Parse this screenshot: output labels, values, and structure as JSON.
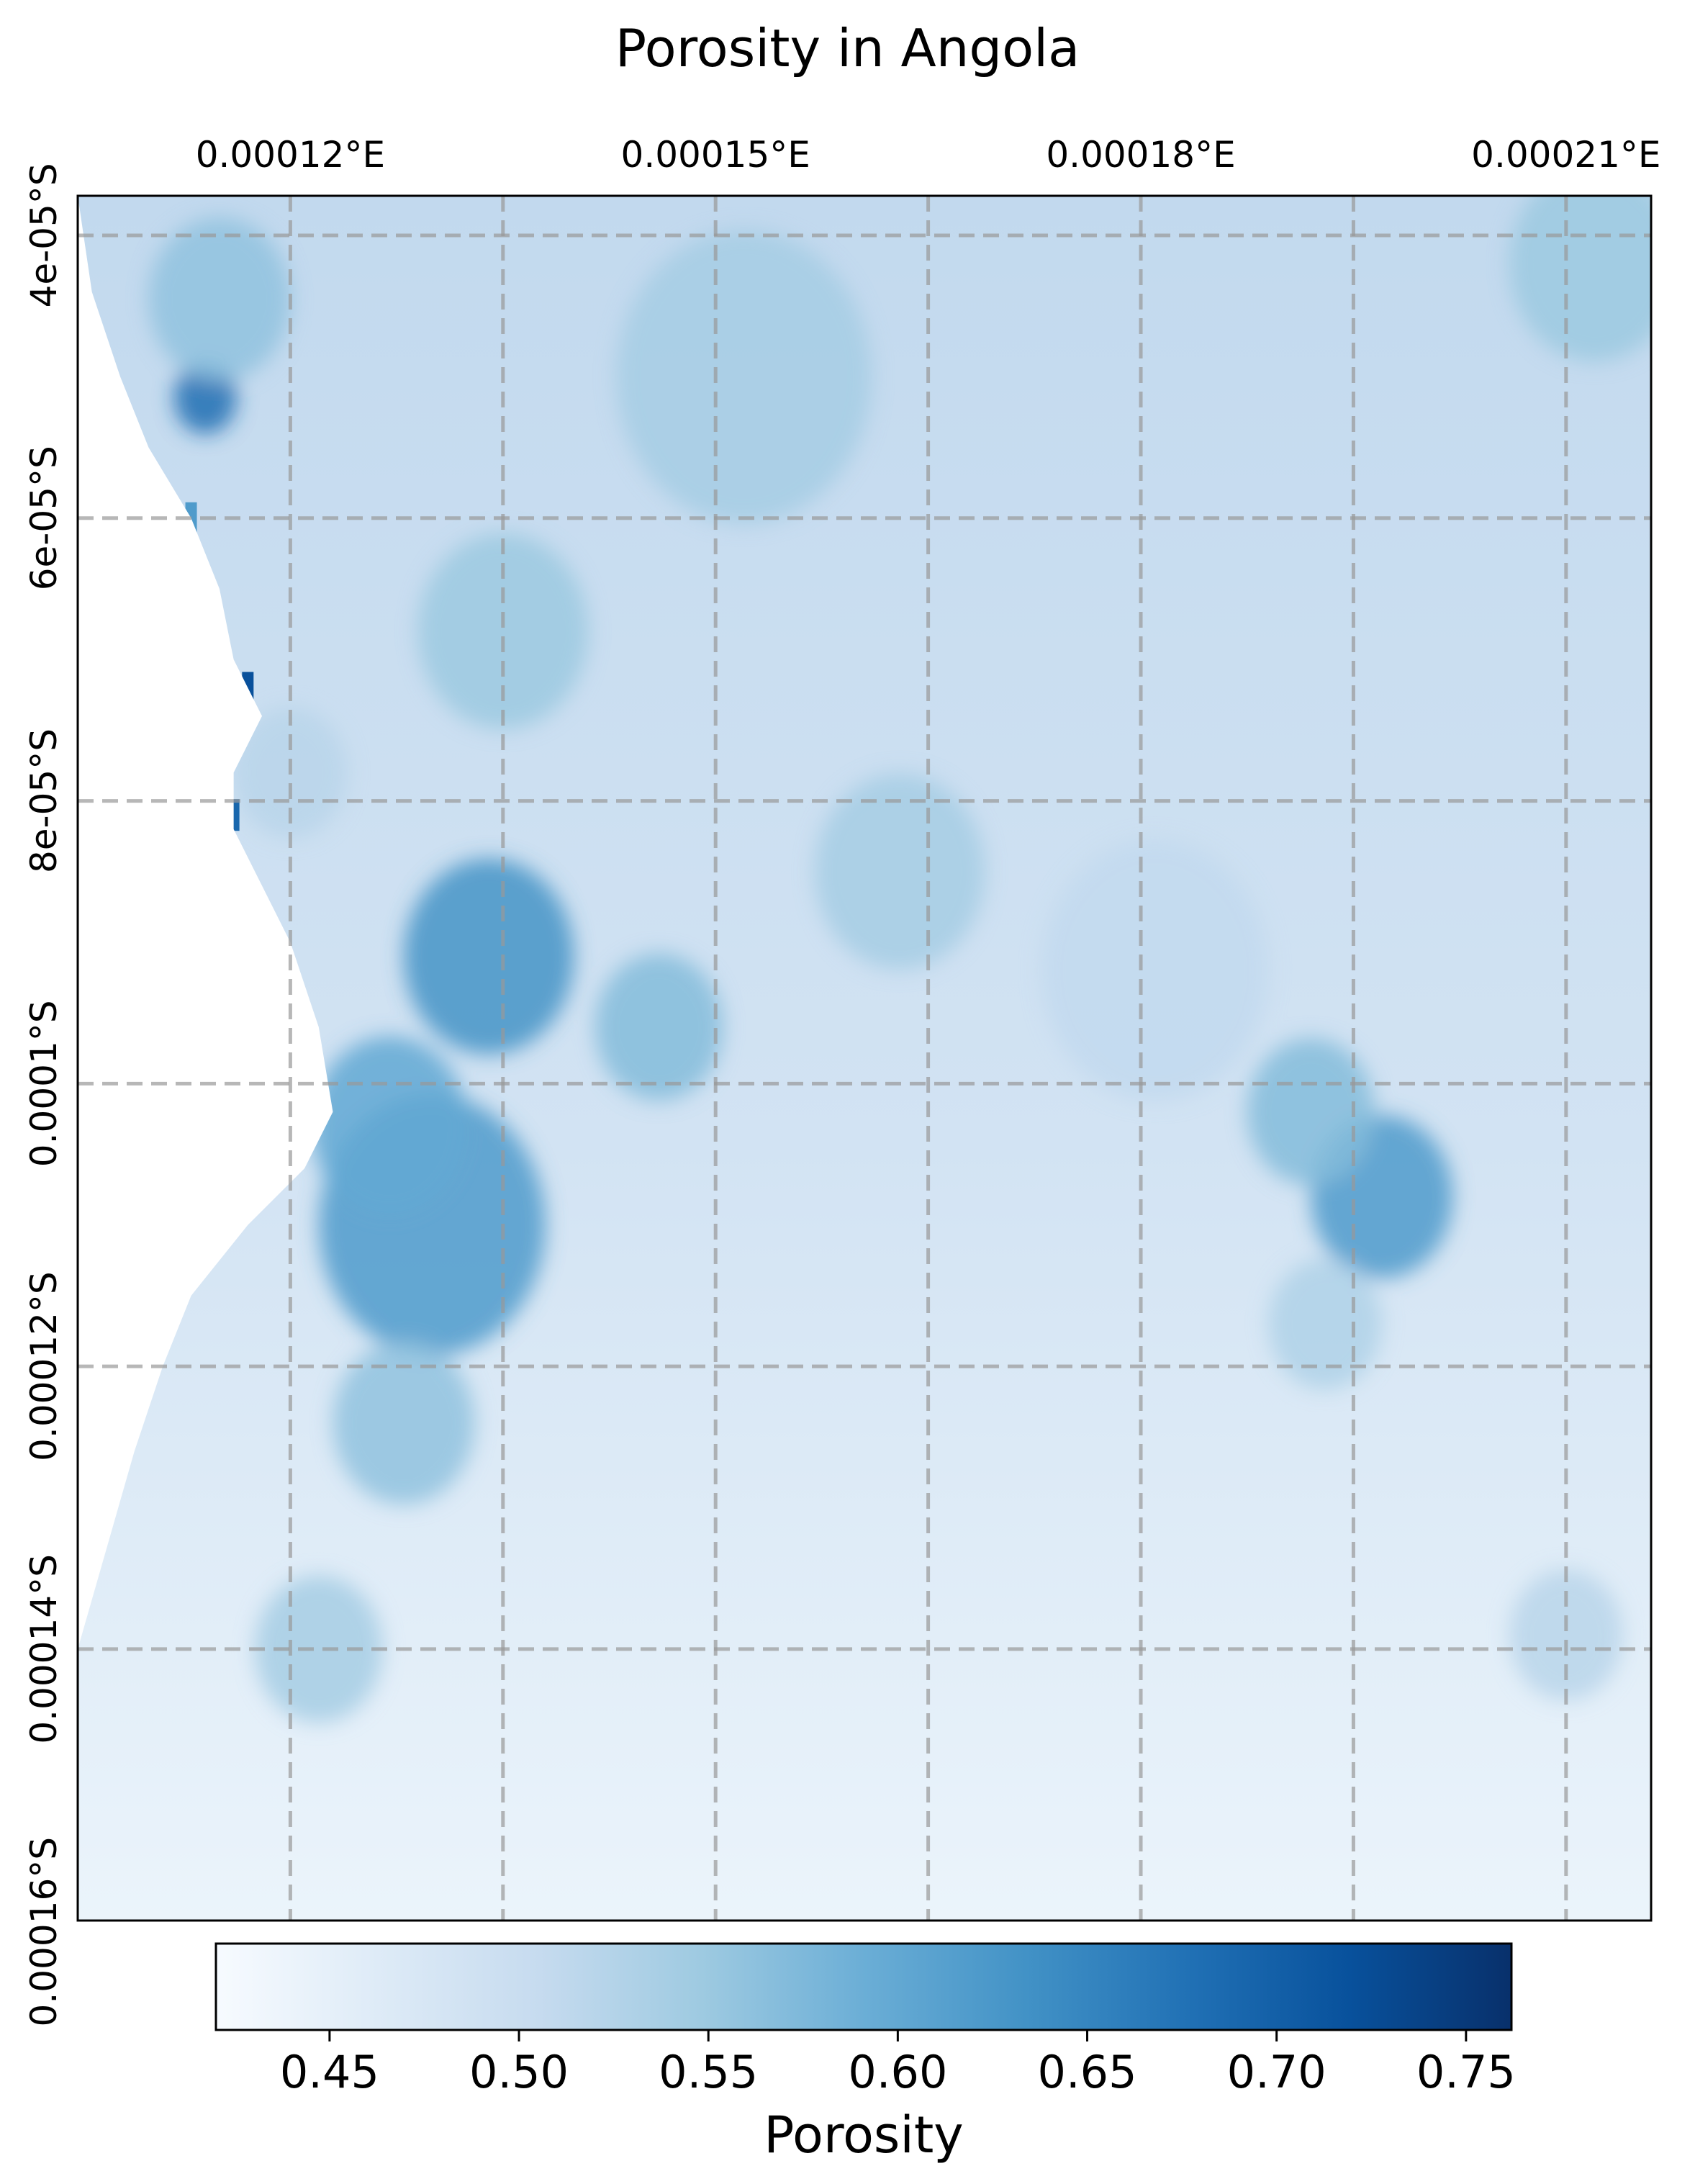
{
  "title": "Porosity in Angola",
  "colors": {
    "colormap": [
      "#f7fbff",
      "#deebf7",
      "#c6dbef",
      "#9ecae1",
      "#6baed6",
      "#4292c6",
      "#2171b5",
      "#08519c",
      "#08306b"
    ],
    "grid": "#999999",
    "frame": "#000000",
    "missing": "#ffffff"
  },
  "map": {
    "lon_range": [
      0.000105,
      0.000216
    ],
    "lat_range": [
      3.72e-05,
      0.0001592
    ],
    "lon_ticks": [
      {
        "value": 0.00012,
        "label": "0.00012°E"
      },
      {
        "value": 0.00015,
        "label": "0.00015°E"
      },
      {
        "value": 0.00018,
        "label": "0.00018°E"
      },
      {
        "value": 0.00021,
        "label": "0.00021°E"
      }
    ],
    "lat_ticks": [
      {
        "value": 4e-05,
        "label": "4e-05°S"
      },
      {
        "value": 6e-05,
        "label": "6e-05°S"
      },
      {
        "value": 8e-05,
        "label": "8e-05°S"
      },
      {
        "value": 0.0001,
        "label": "0.0001°S"
      },
      {
        "value": 0.00012,
        "label": "0.00012°S"
      },
      {
        "value": 0.00014,
        "label": "0.00014°S"
      },
      {
        "value": 0.00016,
        "label": "0.00016°S"
      }
    ],
    "gridlines": "dashed",
    "coastline_west_lon_by_lat": [
      [
        3.72e-05,
        0.000105
      ],
      [
        4.4e-05,
        0.000106
      ],
      [
        5e-05,
        0.000108
      ],
      [
        5.5e-05,
        0.00011
      ],
      [
        6e-05,
        0.000113
      ],
      [
        6.5e-05,
        0.000115
      ],
      [
        7e-05,
        0.000116
      ],
      [
        7.4e-05,
        0.000118
      ],
      [
        7.8e-05,
        0.000116
      ],
      [
        8.2e-05,
        0.000116
      ],
      [
        8.6e-05,
        0.000118
      ],
      [
        9e-05,
        0.00012
      ],
      [
        9.6e-05,
        0.000122
      ],
      [
        0.000102,
        0.000123
      ],
      [
        0.000106,
        0.000121
      ],
      [
        0.00011,
        0.000117
      ],
      [
        0.000115,
        0.000113
      ],
      [
        0.00012,
        0.000111
      ],
      [
        0.000126,
        0.000109
      ],
      [
        0.000133,
        0.000107
      ],
      [
        0.00014,
        0.000105
      ],
      [
        0.0001592,
        0.000105
      ]
    ],
    "porosity_features": [
      {
        "lon": 0.000134,
        "lat": 9.1e-05,
        "spread": 6e-06,
        "value": 0.63
      },
      {
        "lon": 0.00013,
        "lat": 0.00011,
        "spread": 8e-06,
        "value": 0.62
      },
      {
        "lon": 0.000127,
        "lat": 0.000103,
        "spread": 5.5e-06,
        "value": 0.6
      },
      {
        "lon": 0.000146,
        "lat": 9.6e-05,
        "spread": 4.5e-06,
        "value": 0.57
      },
      {
        "lon": 0.000128,
        "lat": 0.000124,
        "spread": 5e-06,
        "value": 0.56
      },
      {
        "lon": 0.000122,
        "lat": 0.00014,
        "spread": 4.5e-06,
        "value": 0.54
      },
      {
        "lon": 0.000197,
        "lat": 0.000108,
        "spread": 5e-06,
        "value": 0.62
      },
      {
        "lon": 0.000192,
        "lat": 0.000102,
        "spread": 4.5e-06,
        "value": 0.57
      },
      {
        "lon": 0.000193,
        "lat": 0.000117,
        "spread": 4e-06,
        "value": 0.53
      },
      {
        "lon": 0.000114,
        "lat": 5.15e-05,
        "spread": 2.2e-06,
        "value": 0.68
      },
      {
        "lon": 0.000115,
        "lat": 4.45e-05,
        "spread": 5e-06,
        "value": 0.56
      },
      {
        "lon": 0.000152,
        "lat": 5e-05,
        "spread": 9e-06,
        "value": 0.54
      },
      {
        "lon": 0.000163,
        "lat": 8.5e-05,
        "spread": 6e-06,
        "value": 0.54
      },
      {
        "lon": 0.000212,
        "lat": 4.2e-05,
        "spread": 6e-06,
        "value": 0.55
      },
      {
        "lon": 0.000135,
        "lat": 6.8e-05,
        "spread": 6e-06,
        "value": 0.55
      },
      {
        "lon": 0.00021,
        "lat": 0.000139,
        "spread": 4e-06,
        "value": 0.52
      },
      {
        "lon": 0.000181,
        "lat": 9.2e-05,
        "spread": 8e-06,
        "value": 0.51
      },
      {
        "lon": 0.00012,
        "lat": 7.8e-05,
        "spread": 4e-06,
        "value": 0.52
      }
    ],
    "hotspots": [
      {
        "lon": 0.000117,
        "lat": 7.2e-05,
        "value": 0.72
      },
      {
        "lon": 0.000116,
        "lat": 8.1e-05,
        "value": 0.69
      },
      {
        "lon": 0.000113,
        "lat": 6e-05,
        "value": 0.62
      }
    ],
    "background_porosity_north": 0.51,
    "background_porosity_south": 0.44
  },
  "colorbar": {
    "label": "Porosity",
    "range": [
      0.42,
      0.762
    ],
    "orientation": "horizontal",
    "ticks": [
      {
        "value": 0.45,
        "label": "0.45"
      },
      {
        "value": 0.5,
        "label": "0.50"
      },
      {
        "value": 0.55,
        "label": "0.55"
      },
      {
        "value": 0.6,
        "label": "0.60"
      },
      {
        "value": 0.65,
        "label": "0.65"
      },
      {
        "value": 0.7,
        "label": "0.70"
      },
      {
        "value": 0.75,
        "label": "0.75"
      }
    ]
  }
}
